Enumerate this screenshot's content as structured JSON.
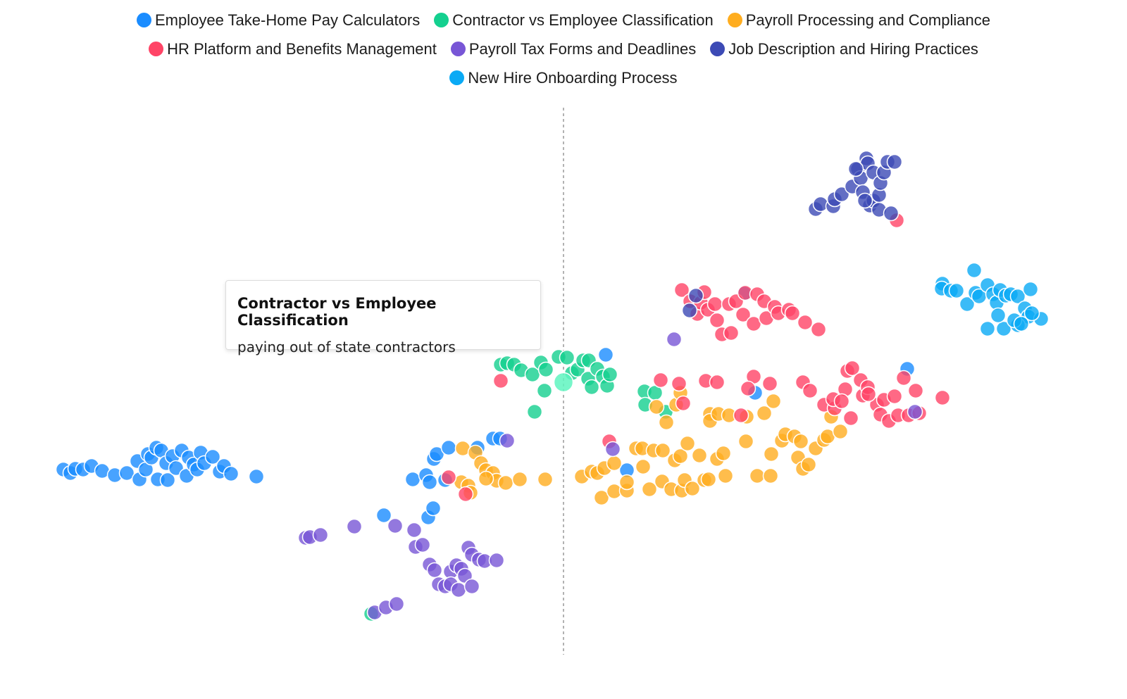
{
  "chart_data": {
    "type": "scatter",
    "legend_position": "top",
    "grid": false,
    "axes_visible": false,
    "reference_line": {
      "x": 0,
      "style": "dashed"
    },
    "series": [
      {
        "name": "Employee Take-Home Pay Calculators",
        "color": "#1a8cff",
        "points": [
          [
            -71,
            -16.7
          ],
          [
            -70,
            -17.2
          ],
          [
            -69.3,
            -16.6
          ],
          [
            -68.2,
            -16.7
          ],
          [
            -67,
            -16.2
          ],
          [
            -65.5,
            -16.9
          ],
          [
            -63.7,
            -17.5
          ],
          [
            -62,
            -17.2
          ],
          [
            -60.5,
            -15.5
          ],
          [
            -60.2,
            -18.1
          ],
          [
            -59.3,
            -16.7
          ],
          [
            -59,
            -14.5
          ],
          [
            -58.5,
            -15
          ],
          [
            -57.8,
            -13.6
          ],
          [
            -57.6,
            -18.1
          ],
          [
            -57.1,
            -14
          ],
          [
            -56.4,
            -15.8
          ],
          [
            -56.2,
            -18.2
          ],
          [
            -55.5,
            -14.8
          ],
          [
            -55,
            -16.5
          ],
          [
            -54.2,
            -14
          ],
          [
            -53.5,
            -17.6
          ],
          [
            -53.2,
            -15
          ],
          [
            -52.5,
            -16
          ],
          [
            -52,
            -16.7
          ],
          [
            -51.5,
            -14.3
          ],
          [
            -51,
            -15.8
          ],
          [
            -49.8,
            -14.9
          ],
          [
            -48.8,
            -17
          ],
          [
            -48.2,
            -16.2
          ],
          [
            -47.2,
            -17.3
          ],
          [
            -43.6,
            -17.7
          ],
          [
            -21.4,
            -18.1
          ],
          [
            -19.5,
            -17.5
          ],
          [
            -19,
            -18.5
          ],
          [
            -18.4,
            -15.2
          ],
          [
            -18,
            -14.5
          ],
          [
            -16.3,
            -13.6
          ],
          [
            -16.8,
            -18.2
          ],
          [
            -12.2,
            -13.6
          ],
          [
            -10,
            -12.3
          ],
          [
            -9,
            -12.3
          ],
          [
            -25.5,
            -23.2
          ],
          [
            -19.2,
            -23.5
          ],
          [
            -18.5,
            -22.2
          ],
          [
            9,
            -16.8
          ],
          [
            27.2,
            -5.8
          ],
          [
            25.7,
            8.3
          ],
          [
            6,
            -0.4
          ],
          [
            48.8,
            -2.4
          ]
        ]
      },
      {
        "name": "Contractor vs Employee Classification",
        "color": "#14d08f",
        "points": [
          [
            -8.9,
            -1.8
          ],
          [
            -8,
            -1.6
          ],
          [
            -7,
            -1.8
          ],
          [
            -6,
            -2.6
          ],
          [
            -4.4,
            -3.2
          ],
          [
            -3.2,
            -1.5
          ],
          [
            -2.5,
            -2.5
          ],
          [
            -0.7,
            -0.7
          ],
          [
            0.5,
            -0.8
          ],
          [
            1.2,
            -3
          ],
          [
            2,
            -2.5
          ],
          [
            2.8,
            -1.2
          ],
          [
            3.6,
            -1.2
          ],
          [
            3.5,
            -3.8
          ],
          [
            4,
            -5
          ],
          [
            4.8,
            -2.4
          ],
          [
            5.6,
            -3.5
          ],
          [
            6.2,
            -4.8
          ],
          [
            6.6,
            -3.2
          ],
          [
            -2.7,
            -5.5
          ],
          [
            -4.1,
            -8.5
          ],
          [
            11.5,
            -5.6
          ],
          [
            13,
            -5.8
          ],
          [
            11.6,
            -7.5
          ],
          [
            14.5,
            -8.5
          ],
          [
            -27.3,
            -37.2
          ]
        ]
      },
      {
        "name": "Payroll Processing and Compliance",
        "color": "#ffad1f",
        "points": [
          [
            -14.3,
            -13.7
          ],
          [
            -12.5,
            -14.3
          ],
          [
            -11.7,
            -15.8
          ],
          [
            -11,
            -16.8
          ],
          [
            -10,
            -17.2
          ],
          [
            -9.5,
            -18.3
          ],
          [
            -8.2,
            -18.6
          ],
          [
            -6.2,
            -18.1
          ],
          [
            -2.6,
            -18.1
          ],
          [
            -14.5,
            -18.5
          ],
          [
            -13.5,
            -19
          ],
          [
            -13.2,
            -20
          ],
          [
            -11,
            -18
          ],
          [
            2.6,
            -17.7
          ],
          [
            4,
            -17
          ],
          [
            4.8,
            -17.2
          ],
          [
            5.8,
            -16.5
          ],
          [
            5.4,
            -20.7
          ],
          [
            7.2,
            -19.8
          ],
          [
            7.2,
            -15.8
          ],
          [
            9,
            -19.7
          ],
          [
            9,
            -18.5
          ],
          [
            10.3,
            -13.7
          ],
          [
            11.3,
            -16.3
          ],
          [
            11.2,
            -13.7
          ],
          [
            12.2,
            -19.5
          ],
          [
            12.8,
            -14
          ],
          [
            14.1,
            -14
          ],
          [
            14,
            -18.4
          ],
          [
            15.3,
            -19.5
          ],
          [
            15.8,
            -15.4
          ],
          [
            16.8,
            -19.7
          ],
          [
            17.2,
            -18.2
          ],
          [
            18.3,
            -19.4
          ],
          [
            16.6,
            -14.8
          ],
          [
            17.6,
            -13
          ],
          [
            19.3,
            -14.7
          ],
          [
            20,
            -18.2
          ],
          [
            20.6,
            -18.1
          ],
          [
            21.8,
            -15.2
          ],
          [
            22.7,
            -14.4
          ],
          [
            23,
            -17.6
          ],
          [
            25.9,
            -12.7
          ],
          [
            27.5,
            -17.6
          ],
          [
            29.4,
            -17.6
          ],
          [
            29.5,
            -14.5
          ],
          [
            31,
            -12.6
          ],
          [
            31.5,
            -11.7
          ],
          [
            32.8,
            -12
          ],
          [
            33.7,
            -12.7
          ],
          [
            33.3,
            -15
          ],
          [
            34,
            -16.6
          ],
          [
            34.8,
            -16
          ],
          [
            35.8,
            -13.7
          ],
          [
            37,
            -12.5
          ],
          [
            37.5,
            -12
          ],
          [
            39.3,
            -11.3
          ],
          [
            20.8,
            -8.8
          ],
          [
            20.8,
            -9.8
          ],
          [
            22,
            -8.8
          ],
          [
            23.5,
            -9
          ],
          [
            26,
            -9.2
          ],
          [
            28.5,
            -8.7
          ],
          [
            29.8,
            -7
          ],
          [
            13.2,
            -7.8
          ],
          [
            14.6,
            -10
          ],
          [
            16,
            -7.5
          ],
          [
            16.6,
            -5.8
          ],
          [
            38,
            -9.2
          ]
        ]
      },
      {
        "name": "HR Platform and Benefits Management",
        "color": "#ff4466",
        "points": [
          [
            16.8,
            8.8
          ],
          [
            18,
            7.2
          ],
          [
            19,
            5.4
          ],
          [
            19.5,
            7
          ],
          [
            20,
            8.5
          ],
          [
            20.5,
            6
          ],
          [
            21.5,
            6.8
          ],
          [
            21.8,
            4.5
          ],
          [
            22.5,
            2.5
          ],
          [
            23.5,
            6.8
          ],
          [
            23.8,
            2.7
          ],
          [
            24.5,
            7.2
          ],
          [
            25.5,
            5.3
          ],
          [
            25.8,
            8.4
          ],
          [
            27,
            4
          ],
          [
            27.5,
            8.2
          ],
          [
            28.5,
            7.2
          ],
          [
            28.8,
            4.8
          ],
          [
            30,
            6.4
          ],
          [
            30.5,
            5.5
          ],
          [
            32,
            6
          ],
          [
            32.5,
            5.5
          ],
          [
            34.3,
            4.2
          ],
          [
            36.2,
            3.2
          ],
          [
            47.3,
            18.7
          ],
          [
            13.8,
            -4
          ],
          [
            16.4,
            -4.5
          ],
          [
            17,
            -7.3
          ],
          [
            20.2,
            -4.1
          ],
          [
            21.8,
            -4.3
          ],
          [
            27,
            -3.5
          ],
          [
            26.2,
            -5.2
          ],
          [
            29.3,
            -4.5
          ],
          [
            25.2,
            -9
          ],
          [
            34,
            -4.3
          ],
          [
            35,
            -5.5
          ],
          [
            37,
            -7.5
          ],
          [
            38.5,
            -8
          ],
          [
            38.3,
            -6.7
          ],
          [
            40,
            -5.3
          ],
          [
            40.3,
            -2.7
          ],
          [
            41,
            -2.3
          ],
          [
            42.2,
            -4
          ],
          [
            42.5,
            -6.2
          ],
          [
            43.2,
            -5
          ],
          [
            44.5,
            -7.5
          ],
          [
            45,
            -8.9
          ],
          [
            45.5,
            -6.8
          ],
          [
            46.2,
            -9.8
          ],
          [
            47,
            -6.3
          ],
          [
            47.5,
            -9
          ],
          [
            48.3,
            -3.7
          ],
          [
            49,
            -9
          ],
          [
            50,
            -5.5
          ],
          [
            50.5,
            -8.7
          ],
          [
            53.8,
            -6.5
          ],
          [
            40.8,
            -9.4
          ],
          [
            39.5,
            -7
          ],
          [
            43.3,
            -6
          ],
          [
            -8.9,
            -4.1
          ],
          [
            -16.3,
            -17.8
          ],
          [
            -13.9,
            -20.2
          ],
          [
            6.5,
            -12.7
          ]
        ]
      },
      {
        "name": "Payroll Tax Forms and Deadlines",
        "color": "#7856d6",
        "points": [
          [
            -36.6,
            -26.4
          ],
          [
            -36,
            -26.3
          ],
          [
            -34.5,
            -26
          ],
          [
            -29.7,
            -24.8
          ],
          [
            -23.9,
            -24.7
          ],
          [
            -21.2,
            -25.3
          ],
          [
            -21,
            -27.7
          ],
          [
            -20,
            -27.4
          ],
          [
            -19,
            -30.2
          ],
          [
            -18.3,
            -31
          ],
          [
            -17.7,
            -33
          ],
          [
            -16.8,
            -33.3
          ],
          [
            -16,
            -31.2
          ],
          [
            -16,
            -33
          ],
          [
            -15.2,
            -30.3
          ],
          [
            -14.9,
            -33.8
          ],
          [
            -14.5,
            -30.8
          ],
          [
            -14,
            -31.8
          ],
          [
            -13.5,
            -27.8
          ],
          [
            -13,
            -33.3
          ],
          [
            -13,
            -28.8
          ],
          [
            -12,
            -29.5
          ],
          [
            -11.2,
            -29.7
          ],
          [
            -9.5,
            -29.6
          ],
          [
            -8,
            -12.6
          ],
          [
            -26.8,
            -37
          ],
          [
            -25.2,
            -36.3
          ],
          [
            -23.7,
            -35.8
          ],
          [
            7,
            -13.8
          ],
          [
            15.7,
            1.8
          ],
          [
            49.9,
            -8.5
          ]
        ]
      },
      {
        "name": "Job Description and Hiring Practices",
        "color": "#3c4ab5",
        "points": [
          [
            35.8,
            20.3
          ],
          [
            36.5,
            21
          ],
          [
            38.3,
            20.7
          ],
          [
            38.5,
            21.7
          ],
          [
            39.5,
            22.4
          ],
          [
            41,
            23.5
          ],
          [
            41.8,
            26
          ],
          [
            42.2,
            24.7
          ],
          [
            42.5,
            22.7
          ],
          [
            43,
            27.5
          ],
          [
            43.2,
            26.8
          ],
          [
            44,
            25.5
          ],
          [
            43.5,
            20.8
          ],
          [
            44,
            21.5
          ],
          [
            44.8,
            20.2
          ],
          [
            44.8,
            22.3
          ],
          [
            45,
            24
          ],
          [
            45.5,
            25.5
          ],
          [
            46,
            27
          ],
          [
            46.5,
            19.7
          ],
          [
            47,
            27
          ],
          [
            42.8,
            21.5
          ],
          [
            41.5,
            26
          ],
          [
            18.8,
            8
          ],
          [
            17.9,
            5.9
          ]
        ]
      },
      {
        "name": "New Hire Onboarding Process",
        "color": "#0aaaf5",
        "points": [
          [
            53.8,
            9.7
          ],
          [
            53.7,
            9
          ],
          [
            55,
            8.7
          ],
          [
            55.8,
            8.7
          ],
          [
            57.3,
            6.8
          ],
          [
            58.3,
            11.6
          ],
          [
            58.5,
            8.4
          ],
          [
            59,
            7.9
          ],
          [
            60.2,
            9.5
          ],
          [
            61,
            8.2
          ],
          [
            61.5,
            7
          ],
          [
            62,
            8.8
          ],
          [
            62.8,
            8
          ],
          [
            63.5,
            8.2
          ],
          [
            64.5,
            7.9
          ],
          [
            65.5,
            6.2
          ],
          [
            66.3,
            8.9
          ],
          [
            66,
            5
          ],
          [
            67.8,
            4.7
          ],
          [
            60.2,
            3.3
          ],
          [
            62.5,
            3.3
          ],
          [
            64.5,
            3.8
          ],
          [
            64,
            4.5
          ],
          [
            61.7,
            5.2
          ],
          [
            66.5,
            5.5
          ],
          [
            65,
            4
          ]
        ]
      }
    ],
    "highlighted_point": {
      "series": "Contractor vs Employee Classification",
      "point": [
        0,
        -4.3
      ],
      "color": "#5ff5c0"
    }
  },
  "tooltip": {
    "title": "Contractor vs Employee Classification",
    "text": "paying out of state contractors"
  }
}
